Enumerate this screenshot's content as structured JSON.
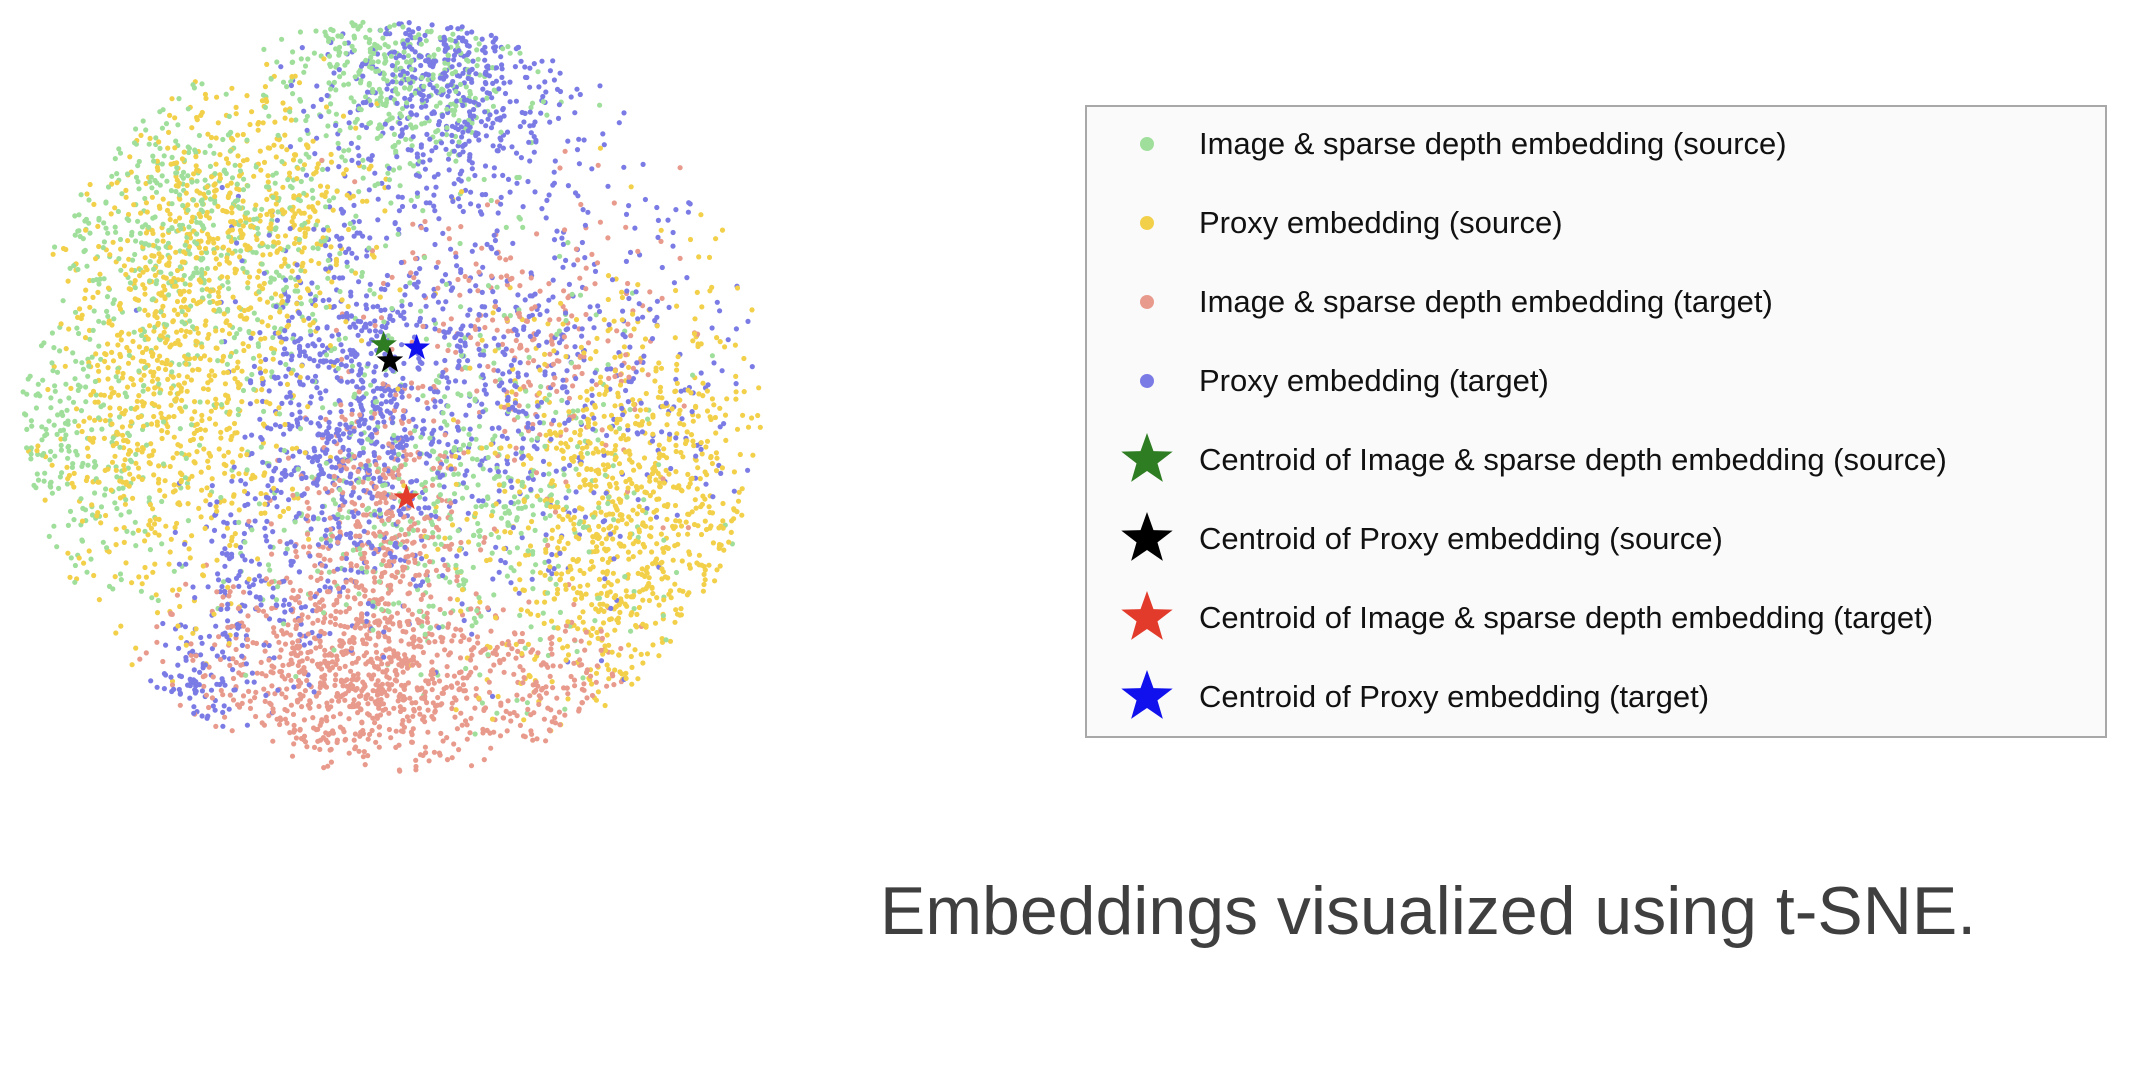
{
  "chart_data": {
    "type": "scatter",
    "title": "",
    "xlabel": "",
    "ylabel": "",
    "grid": false,
    "axes_visible": false,
    "legend_placement": "right",
    "series": [
      {
        "name": "Image & sparse depth embedding (source)",
        "marker": "dot",
        "color": "#9fdf9b",
        "clusters": [
          {
            "x": 0.55,
            "y": 0.45,
            "sx": 0.18,
            "sy": 0.16,
            "n": 500
          },
          {
            "x": 0.12,
            "y": 0.95,
            "sx": 0.12,
            "sy": 0.12,
            "n": 420
          },
          {
            "x": 0.45,
            "y": 1.25,
            "sx": 0.1,
            "sy": 0.1,
            "n": 420
          },
          {
            "x": -0.08,
            "y": 0.55,
            "sx": 0.08,
            "sy": 0.14,
            "n": 260
          },
          {
            "x": 0.2,
            "y": 0.8,
            "sx": 0.25,
            "sy": 0.25,
            "n": 300
          }
        ]
      },
      {
        "name": "Proxy embedding (source)",
        "marker": "dot",
        "color": "#f2d04a",
        "clusters": [
          {
            "x": 0.82,
            "y": 0.4,
            "sx": 0.12,
            "sy": 0.22,
            "n": 1100
          },
          {
            "x": 0.1,
            "y": 0.7,
            "sx": 0.09,
            "sy": 0.22,
            "n": 850
          },
          {
            "x": 0.25,
            "y": 1.0,
            "sx": 0.09,
            "sy": 0.12,
            "n": 350
          }
        ]
      },
      {
        "name": "Image & sparse depth embedding (target)",
        "marker": "dot",
        "color": "#e89a8c",
        "clusters": [
          {
            "x": 0.4,
            "y": 0.13,
            "sx": 0.13,
            "sy": 0.09,
            "n": 900
          },
          {
            "x": 0.42,
            "y": 0.4,
            "sx": 0.07,
            "sy": 0.12,
            "n": 350
          },
          {
            "x": 0.65,
            "y": 0.75,
            "sx": 0.12,
            "sy": 0.14,
            "n": 250
          },
          {
            "x": 0.7,
            "y": 0.1,
            "sx": 0.08,
            "sy": 0.07,
            "n": 150
          }
        ]
      },
      {
        "name": "Proxy embedding (target)",
        "marker": "dot",
        "color": "#7b7be6",
        "clusters": [
          {
            "x": 0.55,
            "y": 1.25,
            "sx": 0.1,
            "sy": 0.13,
            "n": 650
          },
          {
            "x": 0.38,
            "y": 0.6,
            "sx": 0.08,
            "sy": 0.18,
            "n": 650
          },
          {
            "x": 0.65,
            "y": 0.7,
            "sx": 0.18,
            "sy": 0.2,
            "n": 650
          },
          {
            "x": 0.22,
            "y": 0.3,
            "sx": 0.05,
            "sy": 0.12,
            "n": 150
          },
          {
            "x": 0.13,
            "y": 0.12,
            "sx": 0.03,
            "sy": 0.06,
            "n": 90
          }
        ]
      }
    ],
    "centroids": [
      {
        "name": "Centroid of Image & sparse depth embedding (source)",
        "marker": "star",
        "color": "#2f7d22",
        "x": 0.436,
        "y": 0.748
      },
      {
        "name": "Centroid of Proxy embedding (source)",
        "marker": "star",
        "color": "#000000",
        "x": 0.446,
        "y": 0.718
      },
      {
        "name": "Centroid of Image & sparse depth embedding (target)",
        "marker": "star",
        "color": "#e33b2b",
        "x": 0.472,
        "y": 0.464
      },
      {
        "name": "Centroid of Proxy embedding (target)",
        "marker": "star",
        "color": "#1111ee",
        "x": 0.488,
        "y": 0.742
      }
    ],
    "xlim": [
      -0.15,
      1.05
    ],
    "ylim": [
      -0.05,
      1.35
    ]
  },
  "caption": "Embeddings visualized using t-SNE.",
  "legend": {
    "items": [
      {
        "label": "Image & sparse depth embedding (source)",
        "marker": "dot",
        "color": "#9fdf9b"
      },
      {
        "label": "Proxy embedding (source)",
        "marker": "dot",
        "color": "#f2d04a"
      },
      {
        "label": "Image & sparse depth embedding (target)",
        "marker": "dot",
        "color": "#e89a8c"
      },
      {
        "label": "Proxy embedding (target)",
        "marker": "dot",
        "color": "#7b7be6"
      },
      {
        "label": "Centroid of Image & sparse depth embedding (source)",
        "marker": "star",
        "color": "#2f7d22"
      },
      {
        "label": "Centroid of Proxy embedding (source)",
        "marker": "star",
        "color": "#000000"
      },
      {
        "label": "Centroid of Image & sparse depth embedding (target)",
        "marker": "star",
        "color": "#e33b2b"
      },
      {
        "label": "Centroid of Proxy embedding (target)",
        "marker": "star",
        "color": "#1111ee"
      }
    ]
  }
}
